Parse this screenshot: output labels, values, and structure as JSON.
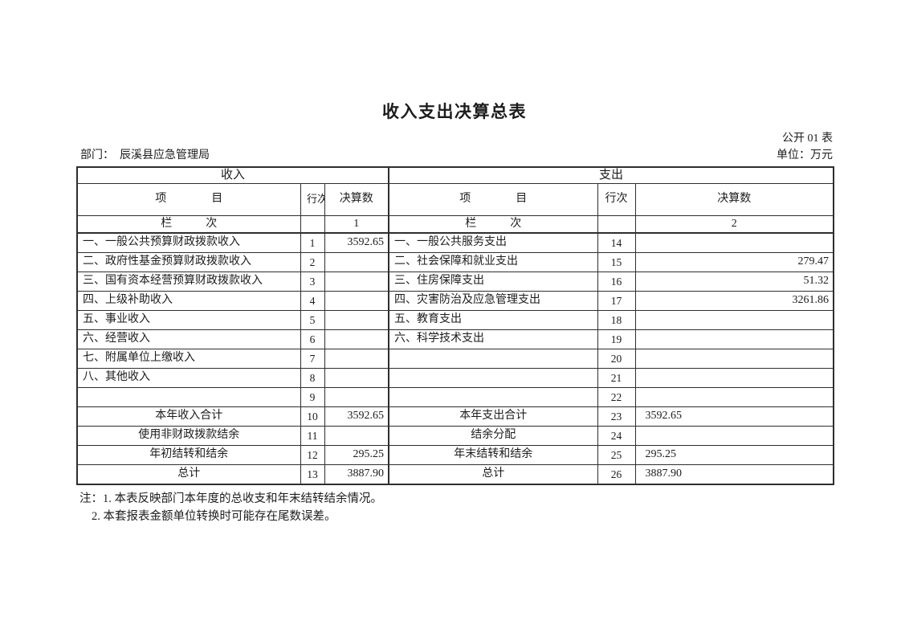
{
  "page": {
    "title": "收入支出决算总表",
    "table_code": "公开 01 表",
    "unit_label": "单位：万元",
    "department": "部门：　辰溪县应急管理局",
    "notes": [
      "注：1. 本表反映部门本年度的总收支和年末结转结余情况。",
      "2. 本套报表金额单位转换时可能存在尾数误差。"
    ]
  },
  "table": {
    "left_title": "收入",
    "right_title": "支出",
    "headers": {
      "item_left": "项　　　　目",
      "row_no_left": "行次",
      "amount_left": "决算数",
      "item_right": "项　　　　目",
      "row_no_right": "行次",
      "amount_right": "决算数"
    },
    "lanci_left": "栏　　　次",
    "lanci_right": "栏　　　次",
    "column_index_left": "1",
    "column_index_right": "2",
    "revenue_rows": [
      {
        "label": "一、一般公共预算财政拨款收入",
        "row_no": "1",
        "amount": "3592.65"
      },
      {
        "label": "二、政府性基金预算财政拨款收入",
        "row_no": "2",
        "amount": ""
      },
      {
        "label": "三、国有资本经营预算财政拨款收入",
        "row_no": "3",
        "amount": ""
      },
      {
        "label": "四、上级补助收入",
        "row_no": "4",
        "amount": ""
      },
      {
        "label": "五、事业收入",
        "row_no": "5",
        "amount": ""
      },
      {
        "label": "六、经营收入",
        "row_no": "6",
        "amount": ""
      },
      {
        "label": "七、附属单位上缴收入",
        "row_no": "7",
        "amount": ""
      },
      {
        "label": "八、其他收入",
        "row_no": "8",
        "amount": ""
      },
      {
        "label": "",
        "row_no": "9",
        "amount": ""
      },
      {
        "label": "本年收入合计",
        "row_no": "10",
        "amount": "3592.65",
        "label_style": "summary-bold"
      },
      {
        "label": "使用非财政拨款结余",
        "row_no": "11",
        "amount": "",
        "label_style": "summary"
      },
      {
        "label": "年初结转和结余",
        "row_no": "12",
        "amount": "295.25",
        "label_style": "summary"
      },
      {
        "label": "总计",
        "row_no": "13",
        "amount": "3887.90",
        "label_style": "summary-bold"
      }
    ],
    "expenditure_rows": [
      {
        "label": "一、一般公共服务支出",
        "row_no": "14",
        "amount": ""
      },
      {
        "label": "二、社会保障和就业支出",
        "row_no": "15",
        "amount": "279.47"
      },
      {
        "label": "三、住房保障支出",
        "row_no": "16",
        "amount": "51.32"
      },
      {
        "label": "四、灾害防治及应急管理支出",
        "row_no": "17",
        "amount": "3261.86"
      },
      {
        "label": "五、教育支出",
        "row_no": "18",
        "amount": ""
      },
      {
        "label": "六、科学技术支出",
        "row_no": "19",
        "amount": ""
      },
      {
        "label": "",
        "row_no": "20",
        "amount": ""
      },
      {
        "label": "",
        "row_no": "21",
        "amount": ""
      },
      {
        "label": "",
        "row_no": "22",
        "amount": ""
      },
      {
        "label": "本年支出合计",
        "row_no": "23",
        "amount": "3592.65",
        "label_style": "summary-bold",
        "amount_align": "left"
      },
      {
        "label": "结余分配",
        "row_no": "24",
        "amount": "",
        "label_style": "summary",
        "amount_align": "left"
      },
      {
        "label": "年末结转和结余",
        "row_no": "25",
        "amount": "295.25",
        "label_style": "summary",
        "amount_align": "left"
      },
      {
        "label": "总计",
        "row_no": "26",
        "amount": "3887.90",
        "label_style": "summary-bold",
        "amount_align": "left",
        "amount_bold": true
      }
    ]
  }
}
